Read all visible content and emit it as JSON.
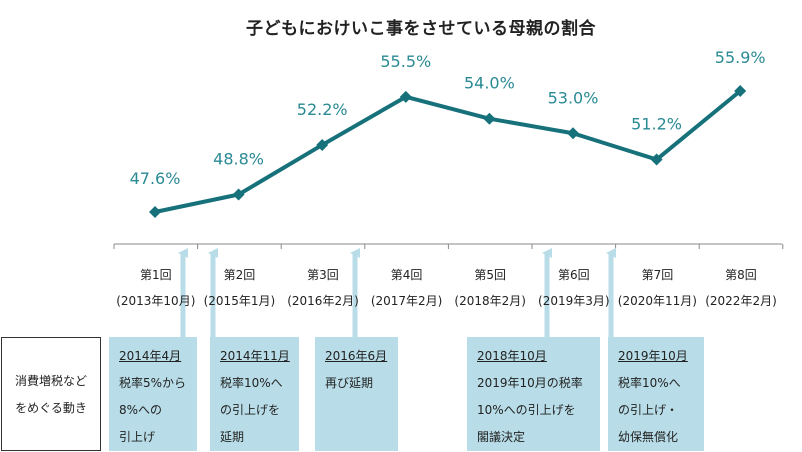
{
  "chart_data": {
    "type": "line",
    "title": "子どもにおけいこ事をさせている母親の割合",
    "categories": [
      "第1回",
      "第2回",
      "第3回",
      "第4回",
      "第5回",
      "第6回",
      "第7回",
      "第8回"
    ],
    "periods": [
      "(2013年10月)",
      "(2015年1月)",
      "(2016年2月)",
      "(2017年2月)",
      "(2018年2月)",
      "(2019年3月)",
      "(2020年11月)",
      "(2022年2月)"
    ],
    "values": [
      47.6,
      48.8,
      52.2,
      55.5,
      54.0,
      53.0,
      51.2,
      55.9
    ],
    "labels": [
      "47.6%",
      "48.8%",
      "52.2%",
      "55.5%",
      "54.0%",
      "53.0%",
      "51.2%",
      "55.9%"
    ],
    "ylim": [
      46,
      57
    ],
    "xlabel": "",
    "ylabel": "",
    "colors": {
      "line": "#16717b",
      "label": "#2a8a94",
      "box": "#b8dde8",
      "arrow": "#b8dde8"
    }
  },
  "side_label": {
    "line1": "消費増税など",
    "line2": "をめぐる動き"
  },
  "events": [
    {
      "head": "2014年4月",
      "lines": [
        "税率5%から",
        "8%への",
        "引上げ"
      ]
    },
    {
      "head": "2014年11月",
      "lines": [
        "税率10%へ",
        "の引上げを",
        "延期"
      ]
    },
    {
      "head": "2016年6月",
      "lines": [
        "再び延期"
      ]
    },
    {
      "head": "2018年10月",
      "lines": [
        "2019年10月の税率",
        "10%への引上げを",
        "閣議決定"
      ]
    },
    {
      "head": "2019年10月",
      "lines": [
        "税率10%へ",
        "の引上げ・",
        "幼保無償化"
      ]
    }
  ]
}
